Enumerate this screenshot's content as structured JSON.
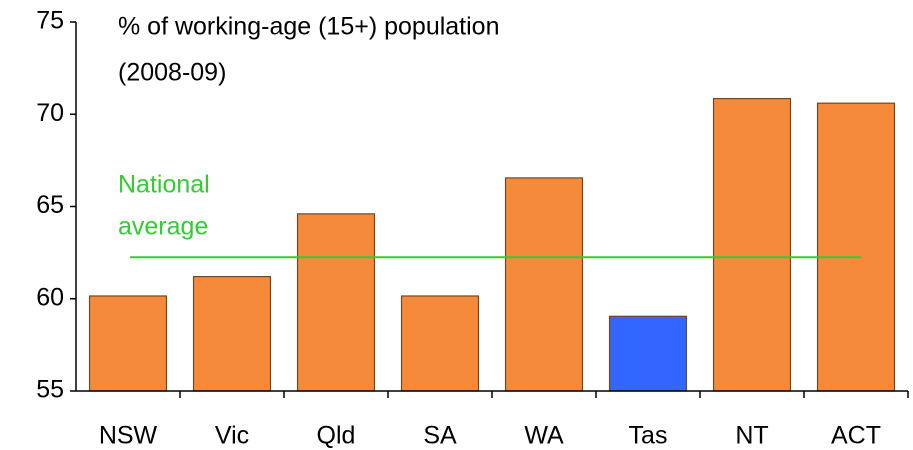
{
  "chart_data": {
    "type": "bar",
    "title": [
      "% of working-age (15+) population",
      "(2008-09)"
    ],
    "categories": [
      "NSW",
      "Vic",
      "Qld",
      "SA",
      "WA",
      "Tas",
      "NT",
      "ACT"
    ],
    "values": [
      60.15,
      61.2,
      64.6,
      60.15,
      66.55,
      59.05,
      70.85,
      70.6
    ],
    "colors": [
      "#f58b3a",
      "#f58b3a",
      "#f58b3a",
      "#f58b3a",
      "#f58b3a",
      "#3366ff",
      "#f58b3a",
      "#f58b3a"
    ],
    "ylim": [
      55,
      75
    ],
    "yticks": [
      55,
      60,
      65,
      70,
      75
    ],
    "grid": false,
    "reference_line": {
      "label": [
        "National",
        "average"
      ],
      "value": 62.25,
      "color": "#33cc33"
    }
  }
}
